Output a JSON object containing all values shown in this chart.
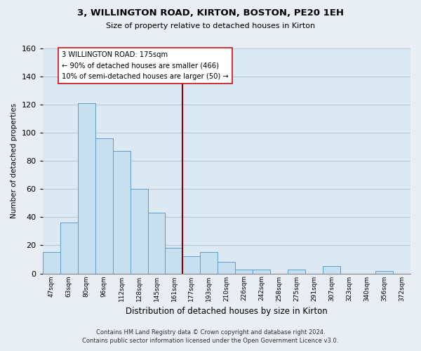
{
  "title": "3, WILLINGTON ROAD, KIRTON, BOSTON, PE20 1EH",
  "subtitle": "Size of property relative to detached houses in Kirton",
  "xlabel": "Distribution of detached houses by size in Kirton",
  "ylabel": "Number of detached properties",
  "bin_labels": [
    "47sqm",
    "63sqm",
    "80sqm",
    "96sqm",
    "112sqm",
    "128sqm",
    "145sqm",
    "161sqm",
    "177sqm",
    "193sqm",
    "210sqm",
    "226sqm",
    "242sqm",
    "258sqm",
    "275sqm",
    "291sqm",
    "307sqm",
    "323sqm",
    "340sqm",
    "356sqm",
    "372sqm"
  ],
  "bar_heights": [
    15,
    36,
    121,
    96,
    87,
    60,
    43,
    18,
    12,
    15,
    8,
    3,
    3,
    0,
    3,
    0,
    5,
    0,
    0,
    2,
    0
  ],
  "bar_color": "#c8dff0",
  "bar_edge_color": "#5a9ec8",
  "reference_line_color": "#8b0000",
  "annotation_line1": "3 WILLINGTON ROAD: 175sqm",
  "annotation_line2": "← 90% of detached houses are smaller (466)",
  "annotation_line3": "10% of semi-detached houses are larger (50) →",
  "ylim": [
    0,
    160
  ],
  "yticks": [
    0,
    20,
    40,
    60,
    80,
    100,
    120,
    140,
    160
  ],
  "footer_line1": "Contains HM Land Registry data © Crown copyright and database right 2024.",
  "footer_line2": "Contains public sector information licensed under the Open Government Licence v3.0.",
  "background_color": "#e8eef4",
  "plot_background_color": "#dce8f2",
  "grid_color": "#b8c8d8"
}
